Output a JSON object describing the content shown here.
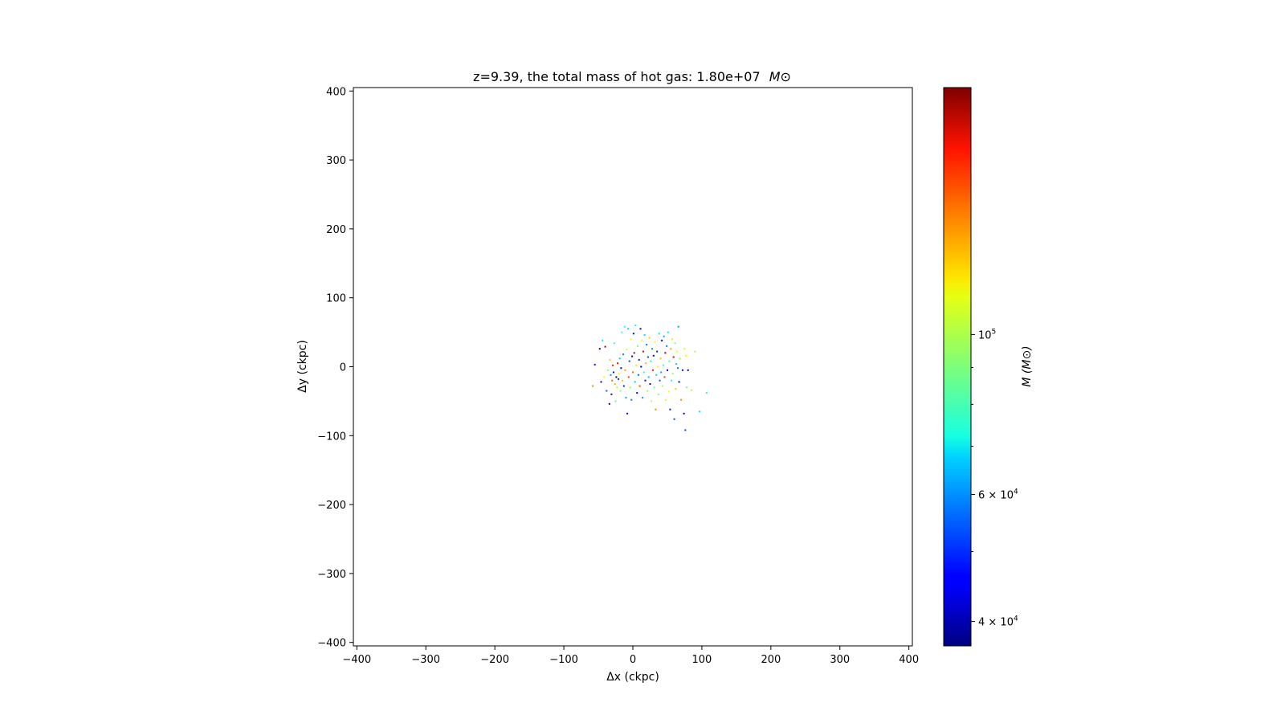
{
  "chart_data": {
    "type": "scatter",
    "title": "z=9.39, the total mass of hot gas: 1.80e+07",
    "title_unit": "M⊙",
    "xlabel": "Δx (ckpc)",
    "ylabel": "Δy (ckpc)",
    "xlim": [
      -405,
      405
    ],
    "ylim": [
      -405,
      405
    ],
    "xticks": [
      -400,
      -300,
      -200,
      -100,
      0,
      100,
      200,
      300,
      400
    ],
    "yticks": [
      -400,
      -300,
      -200,
      -100,
      0,
      100,
      200,
      300,
      400
    ],
    "xtick_labels": [
      "−400",
      "−300",
      "−200",
      "−100",
      "0",
      "100",
      "200",
      "300",
      "400"
    ],
    "ytick_labels": [
      "−400",
      "−300",
      "−200",
      "−100",
      "0",
      "100",
      "200",
      "300",
      "400"
    ],
    "grid": false,
    "colormap": "jet",
    "colorbar": {
      "label": "M (M⊙)",
      "scale": "log",
      "range": [
        37000,
        220000
      ],
      "ticks": [
        {
          "value": 100000,
          "base": "10",
          "exp": "5",
          "mant": ""
        },
        {
          "value": 60000,
          "base": "10",
          "exp": "4",
          "mant": "6 × "
        },
        {
          "value": 40000,
          "base": "10",
          "exp": "4",
          "mant": "4 × "
        }
      ],
      "minor_ticks": [
        50000,
        70000,
        80000,
        90000
      ]
    },
    "points": [
      {
        "x": -58,
        "y": -28,
        "m": 140000
      },
      {
        "x": -55,
        "y": 3,
        "m": 48000
      },
      {
        "x": -48,
        "y": 26,
        "m": 42000
      },
      {
        "x": -46,
        "y": -22,
        "m": 45000
      },
      {
        "x": -44,
        "y": 38,
        "m": 70000
      },
      {
        "x": -42,
        "y": -15,
        "m": 110000
      },
      {
        "x": -40,
        "y": 29,
        "m": 210000
      },
      {
        "x": -38,
        "y": -35,
        "m": 55000
      },
      {
        "x": -36,
        "y": -5,
        "m": 90000
      },
      {
        "x": -34,
        "y": -54,
        "m": 40000
      },
      {
        "x": -33,
        "y": 10,
        "m": 120000
      },
      {
        "x": -32,
        "y": -12,
        "m": 60000
      },
      {
        "x": -31,
        "y": -40,
        "m": 43000
      },
      {
        "x": -30,
        "y": -20,
        "m": 150000
      },
      {
        "x": -29,
        "y": 2,
        "m": 170000
      },
      {
        "x": -28,
        "y": -8,
        "m": 46000
      },
      {
        "x": -27,
        "y": 34,
        "m": 75000
      },
      {
        "x": -26,
        "y": -25,
        "m": 130000
      },
      {
        "x": -25,
        "y": -50,
        "m": 85000
      },
      {
        "x": -24,
        "y": -15,
        "m": 39000
      },
      {
        "x": -23,
        "y": -30,
        "m": 100000
      },
      {
        "x": -22,
        "y": 5,
        "m": 180000
      },
      {
        "x": -21,
        "y": -18,
        "m": 50000
      },
      {
        "x": -20,
        "y": -10,
        "m": 115000
      },
      {
        "x": -19,
        "y": 12,
        "m": 65000
      },
      {
        "x": -18,
        "y": -35,
        "m": 95000
      },
      {
        "x": -17,
        "y": -2,
        "m": 44000
      },
      {
        "x": -16,
        "y": 50,
        "m": 80000
      },
      {
        "x": -15,
        "y": -20,
        "m": 125000
      },
      {
        "x": -14,
        "y": 18,
        "m": 58000
      },
      {
        "x": -13,
        "y": -28,
        "m": 49000
      },
      {
        "x": -12,
        "y": 58,
        "m": 72000
      },
      {
        "x": -11,
        "y": -5,
        "m": 135000
      },
      {
        "x": -10,
        "y": -45,
        "m": 62000
      },
      {
        "x": -9,
        "y": 25,
        "m": 105000
      },
      {
        "x": -8,
        "y": -68,
        "m": 47000
      },
      {
        "x": -7,
        "y": 55,
        "m": 68000
      },
      {
        "x": -6,
        "y": -15,
        "m": 160000
      },
      {
        "x": -5,
        "y": 8,
        "m": 52000
      },
      {
        "x": -4,
        "y": -30,
        "m": 92000
      },
      {
        "x": -3,
        "y": 40,
        "m": 112000
      },
      {
        "x": -2,
        "y": -48,
        "m": 57000
      },
      {
        "x": -1,
        "y": 15,
        "m": 41000
      },
      {
        "x": 0,
        "y": -8,
        "m": 145000
      },
      {
        "x": 1,
        "y": 48,
        "m": 44000
      },
      {
        "x": 2,
        "y": 20,
        "m": 200000
      },
      {
        "x": 3,
        "y": -22,
        "m": 66000
      },
      {
        "x": 4,
        "y": 60,
        "m": 73000
      },
      {
        "x": 5,
        "y": 2,
        "m": 118000
      },
      {
        "x": 6,
        "y": -38,
        "m": 45000
      },
      {
        "x": 7,
        "y": 30,
        "m": 88000
      },
      {
        "x": 8,
        "y": -12,
        "m": 55000
      },
      {
        "x": 9,
        "y": 10,
        "m": 48000
      },
      {
        "x": 10,
        "y": -28,
        "m": 155000
      },
      {
        "x": 11,
        "y": 55,
        "m": 42000
      },
      {
        "x": 12,
        "y": 0,
        "m": 36000
      },
      {
        "x": 13,
        "y": 38,
        "m": 108000
      },
      {
        "x": 14,
        "y": -45,
        "m": 61000
      },
      {
        "x": 15,
        "y": 22,
        "m": 195000
      },
      {
        "x": 16,
        "y": -8,
        "m": 78000
      },
      {
        "x": 17,
        "y": 46,
        "m": 68000
      },
      {
        "x": 18,
        "y": -20,
        "m": 47000
      },
      {
        "x": 19,
        "y": 5,
        "m": 128000
      },
      {
        "x": 20,
        "y": 32,
        "m": 58000
      },
      {
        "x": 21,
        "y": -35,
        "m": 96000
      },
      {
        "x": 22,
        "y": 14,
        "m": 52000
      },
      {
        "x": 23,
        "y": -15,
        "m": 64000
      },
      {
        "x": 24,
        "y": 42,
        "m": 122000
      },
      {
        "x": 25,
        "y": -25,
        "m": 44000
      },
      {
        "x": 26,
        "y": 8,
        "m": 76000
      },
      {
        "x": 27,
        "y": -50,
        "m": 100000
      },
      {
        "x": 28,
        "y": 26,
        "m": 59000
      },
      {
        "x": 29,
        "y": -5,
        "m": 170000
      },
      {
        "x": 30,
        "y": 16,
        "m": 46000
      },
      {
        "x": 31,
        "y": -30,
        "m": 86000
      },
      {
        "x": 32,
        "y": 36,
        "m": 110000
      },
      {
        "x": 33,
        "y": -62,
        "m": 140000
      },
      {
        "x": 34,
        "y": -12,
        "m": 67000
      },
      {
        "x": 35,
        "y": 22,
        "m": 49000
      },
      {
        "x": 36,
        "y": 0,
        "m": 115000
      },
      {
        "x": 37,
        "y": -40,
        "m": 90000
      },
      {
        "x": 38,
        "y": 48,
        "m": 71000
      },
      {
        "x": 39,
        "y": -20,
        "m": 55000
      },
      {
        "x": 40,
        "y": 12,
        "m": 125000
      },
      {
        "x": 41,
        "y": -8,
        "m": 62000
      },
      {
        "x": 42,
        "y": 38,
        "m": 46000
      },
      {
        "x": 43,
        "y": -28,
        "m": 98000
      },
      {
        "x": 44,
        "y": 2,
        "m": 78000
      },
      {
        "x": 45,
        "y": 44,
        "m": 63000
      },
      {
        "x": 46,
        "y": -15,
        "m": 160000
      },
      {
        "x": 47,
        "y": 20,
        "m": 210000
      },
      {
        "x": 48,
        "y": -48,
        "m": 104000
      },
      {
        "x": 49,
        "y": 30,
        "m": 58000
      },
      {
        "x": 50,
        "y": -5,
        "m": 42000
      },
      {
        "x": 51,
        "y": 50,
        "m": 69000
      },
      {
        "x": 52,
        "y": -36,
        "m": 112000
      },
      {
        "x": 53,
        "y": 8,
        "m": 82000
      },
      {
        "x": 54,
        "y": -62,
        "m": 48000
      },
      {
        "x": 55,
        "y": 26,
        "m": 130000
      },
      {
        "x": 56,
        "y": -20,
        "m": 74000
      },
      {
        "x": 57,
        "y": 40,
        "m": 115000
      },
      {
        "x": 58,
        "y": -10,
        "m": 95000
      },
      {
        "x": 59,
        "y": 14,
        "m": 185000
      },
      {
        "x": 60,
        "y": -76,
        "m": 53000
      },
      {
        "x": 61,
        "y": 34,
        "m": 87000
      },
      {
        "x": 62,
        "y": -32,
        "m": 120000
      },
      {
        "x": 63,
        "y": 4,
        "m": 66000
      },
      {
        "x": 64,
        "y": 22,
        "m": 108000
      },
      {
        "x": 65,
        "y": -2,
        "m": 57000
      },
      {
        "x": 66,
        "y": 58,
        "m": 61000
      },
      {
        "x": 67,
        "y": -22,
        "m": 45000
      },
      {
        "x": 68,
        "y": 12,
        "m": 92000
      },
      {
        "x": 70,
        "y": -48,
        "m": 140000
      },
      {
        "x": 72,
        "y": -5,
        "m": 47000
      },
      {
        "x": 74,
        "y": -68,
        "m": 43000
      },
      {
        "x": 75,
        "y": 26,
        "m": 100000
      },
      {
        "x": 76,
        "y": -92,
        "m": 52000
      },
      {
        "x": 77,
        "y": 16,
        "m": 110000
      },
      {
        "x": 78,
        "y": -30,
        "m": 88000
      },
      {
        "x": 80,
        "y": -5,
        "m": 38000
      },
      {
        "x": 85,
        "y": -34,
        "m": 102000
      },
      {
        "x": 90,
        "y": 22,
        "m": 97000
      },
      {
        "x": 97,
        "y": -65,
        "m": 68000
      },
      {
        "x": 107,
        "y": -38,
        "m": 76000
      }
    ]
  }
}
